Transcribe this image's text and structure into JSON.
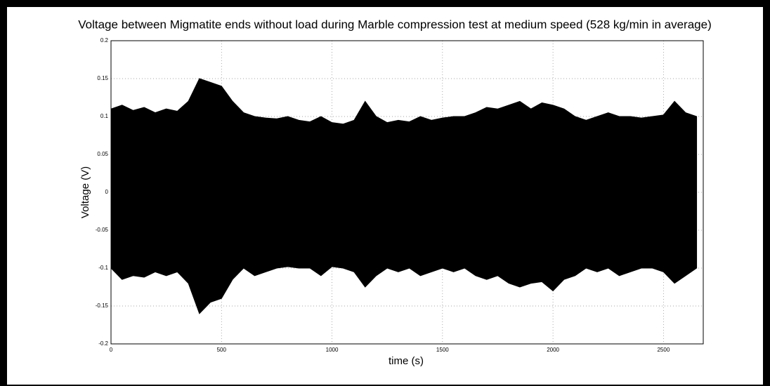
{
  "chart_data": {
    "type": "area",
    "title": "Voltage between Migmatite ends without load during Marble compression test at medium speed (528 kg/min in average)",
    "xlabel": "time (s)",
    "ylabel": "Voltage (V)",
    "x": [
      0,
      50,
      100,
      150,
      200,
      250,
      300,
      350,
      400,
      450,
      500,
      550,
      600,
      650,
      700,
      750,
      800,
      850,
      900,
      950,
      1000,
      1050,
      1100,
      1150,
      1200,
      1250,
      1300,
      1350,
      1400,
      1450,
      1500,
      1550,
      1600,
      1650,
      1700,
      1750,
      1800,
      1850,
      1900,
      1950,
      2000,
      2050,
      2100,
      2150,
      2200,
      2250,
      2300,
      2350,
      2400,
      2450,
      2500,
      2550,
      2600,
      2650
    ],
    "series": [
      {
        "color": "#000000",
        "values": [
          0.11,
          0.115,
          0.108,
          0.112,
          0.105,
          0.11,
          0.107,
          0.12,
          0.15,
          0.145,
          0.14,
          0.12,
          0.105,
          0.1,
          0.098,
          0.097,
          0.1,
          0.095,
          0.093,
          0.1,
          0.092,
          0.09,
          0.095,
          0.12,
          0.1,
          0.092,
          0.095,
          0.093,
          0.1,
          0.095,
          0.098,
          0.1,
          0.1,
          0.105,
          0.112,
          0.11,
          0.115,
          0.12,
          0.11,
          0.118,
          0.115,
          0.11,
          0.1,
          0.095,
          0.1,
          0.105,
          0.1,
          0.1,
          0.098,
          0.1,
          0.102,
          0.12,
          0.105,
          0.1
        ]
      },
      {
        "color": "#000000",
        "values": [
          -0.1,
          -0.115,
          -0.11,
          -0.112,
          -0.105,
          -0.11,
          -0.105,
          -0.12,
          -0.16,
          -0.145,
          -0.14,
          -0.115,
          -0.1,
          -0.11,
          -0.105,
          -0.1,
          -0.098,
          -0.1,
          -0.1,
          -0.11,
          -0.098,
          -0.1,
          -0.105,
          -0.125,
          -0.11,
          -0.1,
          -0.105,
          -0.1,
          -0.11,
          -0.105,
          -0.1,
          -0.105,
          -0.1,
          -0.11,
          -0.115,
          -0.11,
          -0.12,
          -0.125,
          -0.12,
          -0.118,
          -0.13,
          -0.115,
          -0.11,
          -0.1,
          -0.105,
          -0.1,
          -0.11,
          -0.105,
          -0.1,
          -0.1,
          -0.105,
          -0.12,
          -0.11,
          -0.1
        ]
      }
    ],
    "xlim": [
      0,
      2680
    ],
    "ylim": [
      -0.2,
      0.2
    ],
    "xticks": [
      0,
      500,
      1000,
      1500,
      2000,
      2500
    ],
    "yticks": [
      0.2,
      0.15,
      0.1,
      0.05,
      0,
      -0.05,
      -0.1,
      -0.15,
      -0.2
    ],
    "grid": true
  }
}
